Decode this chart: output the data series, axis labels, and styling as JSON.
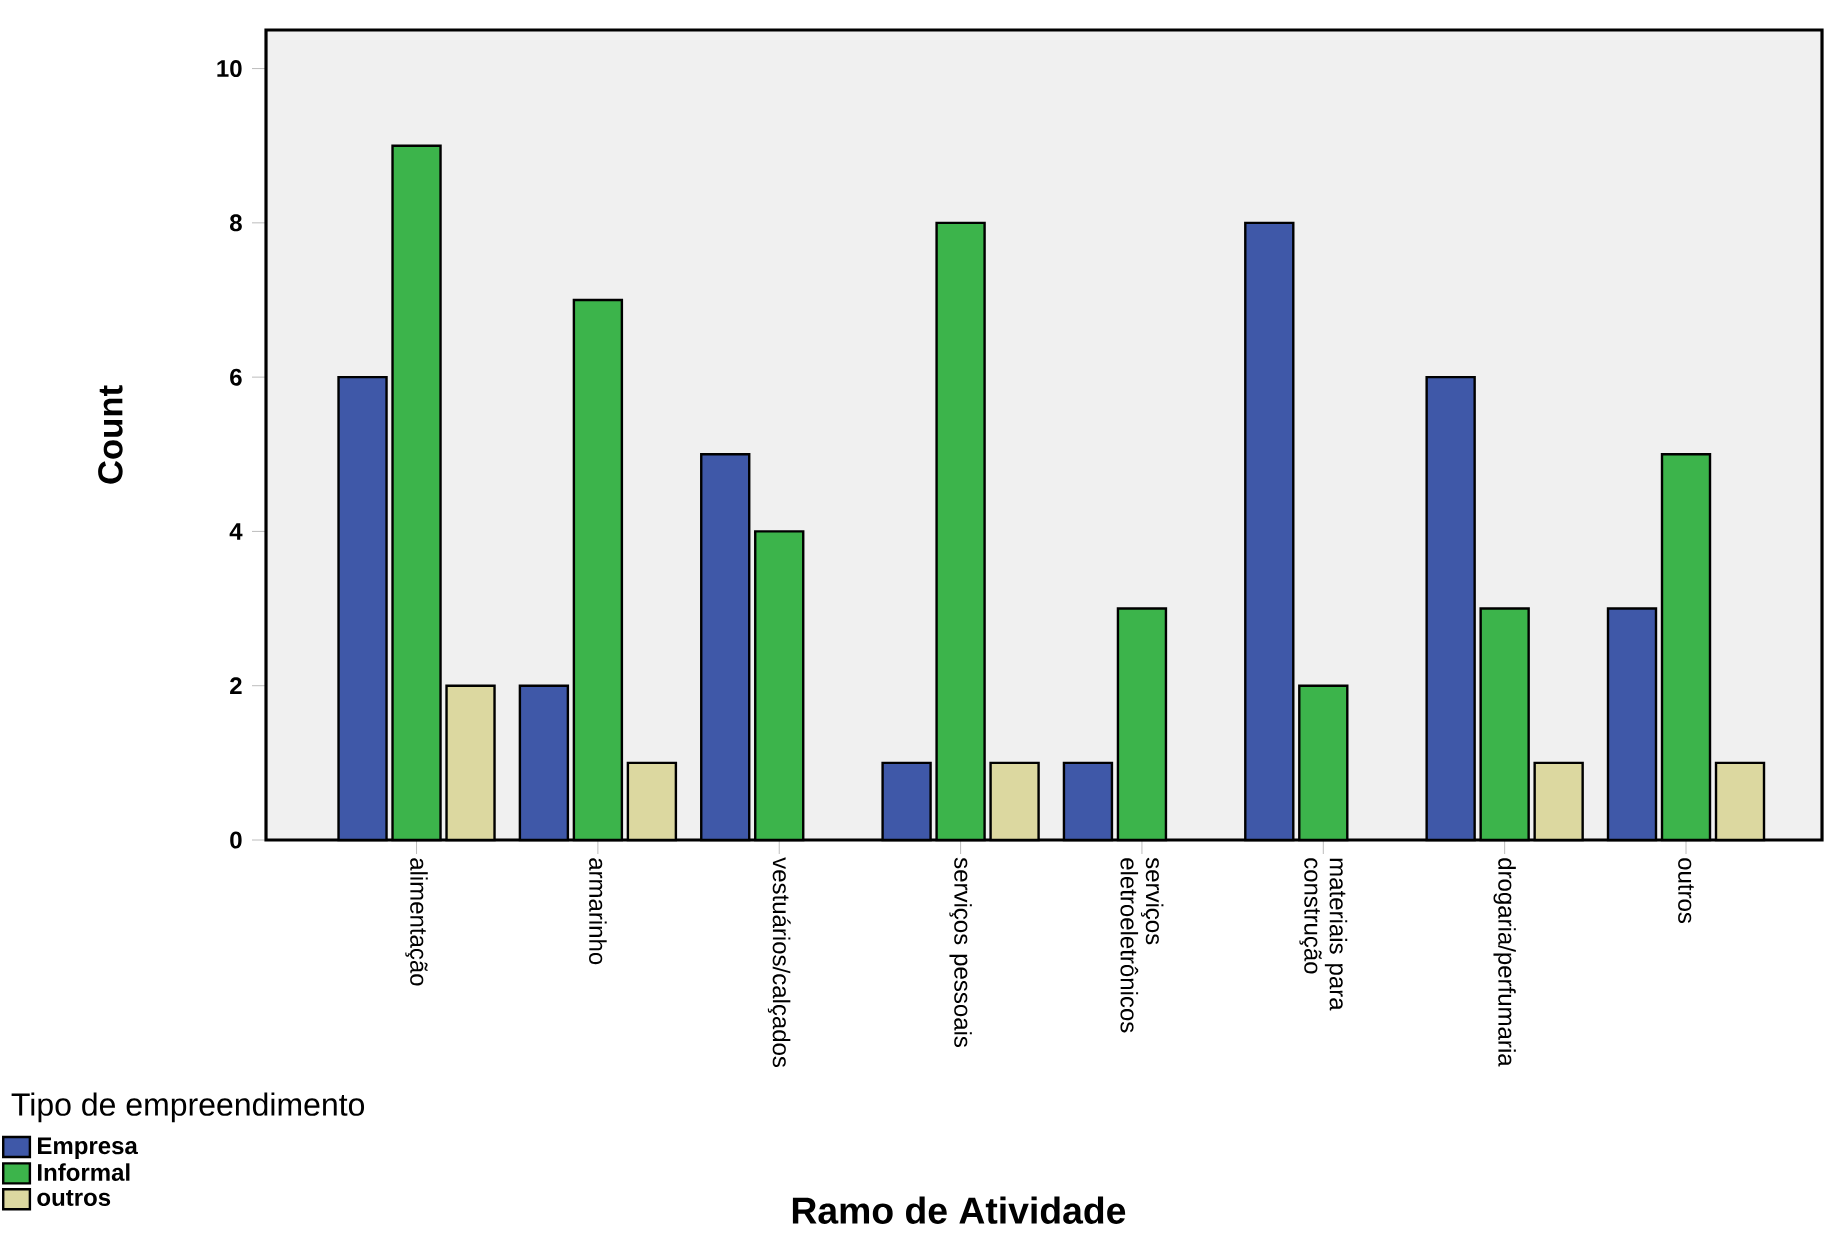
{
  "chart_data": {
    "type": "bar",
    "xlabel": "Ramo de Atividade",
    "ylabel": "Count",
    "legend_title": "Tipo  de empreendimento",
    "categories": [
      "alimentação",
      "armarinho",
      "vestuários/calçados",
      "serviços pessoais",
      "serviços eletroeletrônicos",
      "materiais para construção",
      "drogaria/perfumaria",
      "outros"
    ],
    "series": [
      {
        "name": "Empresa",
        "color": "#3f58a8",
        "values": [
          6,
          2,
          5,
          1,
          1,
          8,
          6,
          3
        ]
      },
      {
        "name": "Informal",
        "color": "#3cb44b",
        "values": [
          9,
          7,
          4,
          8,
          3,
          2,
          3,
          5
        ]
      },
      {
        "name": "outros",
        "color": "#dcd8a0",
        "values": [
          2,
          1,
          null,
          1,
          null,
          null,
          1,
          1
        ]
      }
    ],
    "ylim": [
      0,
      10.5
    ],
    "yticks": [
      0,
      2,
      4,
      6,
      8,
      10
    ],
    "legend": "bottom left"
  }
}
